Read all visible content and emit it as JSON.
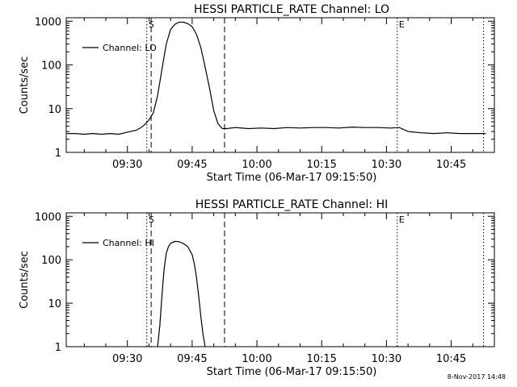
{
  "footer_stamp": "8-Nov-2017 14:48",
  "chart_data": [
    {
      "type": "line",
      "title": "HESSI PARTICLE_RATE Channel: LO",
      "xlabel": "Start Time (06-Mar-17 09:15:50)",
      "ylabel": "Counts/sec",
      "yscale": "log",
      "ylim": [
        1,
        1200
      ],
      "xlim": [
        "09:15:50",
        "10:55:00"
      ],
      "xticks": [
        "09:30",
        "09:45",
        "10:00",
        "10:15",
        "10:30",
        "10:45"
      ],
      "yticks": [
        "1",
        "10",
        "100",
        "1000"
      ],
      "legend": "top-left",
      "series": [
        {
          "name": "Channel: LO",
          "x": [
            "09:16:00",
            "09:18:00",
            "09:20:00",
            "09:22:00",
            "09:24:00",
            "09:26:00",
            "09:28:00",
            "09:30:00",
            "09:32:00",
            "09:33:00",
            "09:34:00",
            "09:35:00",
            "09:36:00",
            "09:37:00",
            "09:38:00",
            "09:39:00",
            "09:40:00",
            "09:41:00",
            "09:42:00",
            "09:43:00",
            "09:44:00",
            "09:45:00",
            "09:46:00",
            "09:47:00",
            "09:48:00",
            "09:49:00",
            "09:50:00",
            "09:51:00",
            "09:52:00",
            "09:53:00",
            "09:55:00",
            "09:58:00",
            "10:01:00",
            "10:04:00",
            "10:07:00",
            "10:10:00",
            "10:13:00",
            "10:16:00",
            "10:19:00",
            "10:22:00",
            "10:25:00",
            "10:28:00",
            "10:31:00",
            "10:33:00",
            "10:35:00",
            "10:38:00",
            "10:41:00",
            "10:44:00",
            "10:47:00",
            "10:50:00",
            "10:53:00"
          ],
          "y": [
            2.7,
            2.7,
            2.6,
            2.7,
            2.6,
            2.7,
            2.6,
            2.9,
            3.2,
            3.6,
            4.3,
            5.5,
            8,
            20,
            80,
            300,
            650,
            850,
            950,
            950,
            880,
            750,
            500,
            250,
            90,
            30,
            9,
            4.5,
            3.5,
            3.5,
            3.7,
            3.5,
            3.6,
            3.5,
            3.7,
            3.6,
            3.7,
            3.7,
            3.6,
            3.8,
            3.7,
            3.7,
            3.6,
            3.7,
            3.0,
            2.8,
            2.7,
            2.8,
            2.7,
            2.7,
            2.7
          ]
        }
      ],
      "markers": [
        {
          "time": "09:34:30",
          "label": "S",
          "style": "dotted"
        },
        {
          "time": "09:35:30",
          "label": "",
          "style": "dashed"
        },
        {
          "time": "09:52:30",
          "label": "",
          "style": "dashed"
        },
        {
          "time": "10:32:30",
          "label": "E",
          "style": "dotted"
        },
        {
          "time": "10:52:30",
          "label": "",
          "style": "dotted"
        }
      ]
    },
    {
      "type": "line",
      "title": "HESSI PARTICLE_RATE Channel: HI",
      "xlabel": "Start Time (06-Mar-17 09:15:50)",
      "ylabel": "Counts/sec",
      "yscale": "log",
      "ylim": [
        1,
        1200
      ],
      "xlim": [
        "09:15:50",
        "10:55:00"
      ],
      "xticks": [
        "09:30",
        "09:45",
        "10:00",
        "10:15",
        "10:30",
        "10:45"
      ],
      "yticks": [
        "1",
        "10",
        "100",
        "1000"
      ],
      "legend": "top-left",
      "series": [
        {
          "name": "Channel: HI",
          "x": [
            "09:37:00",
            "09:37:30",
            "09:38:00",
            "09:38:30",
            "09:39:00",
            "09:39:30",
            "09:40:00",
            "09:41:00",
            "09:42:00",
            "09:43:00",
            "09:44:00",
            "09:45:00",
            "09:45:30",
            "09:46:00",
            "09:46:30",
            "09:47:00",
            "09:47:30",
            "09:48:00"
          ],
          "y": [
            1,
            3,
            15,
            60,
            140,
            200,
            240,
            265,
            260,
            235,
            200,
            130,
            80,
            40,
            15,
            5,
            2,
            1
          ]
        }
      ],
      "markers": [
        {
          "time": "09:34:30",
          "label": "S",
          "style": "dotted"
        },
        {
          "time": "09:35:30",
          "label": "",
          "style": "dashed"
        },
        {
          "time": "09:52:30",
          "label": "",
          "style": "dashed"
        },
        {
          "time": "10:32:30",
          "label": "E",
          "style": "dotted"
        },
        {
          "time": "10:52:30",
          "label": "",
          "style": "dotted"
        }
      ]
    }
  ]
}
